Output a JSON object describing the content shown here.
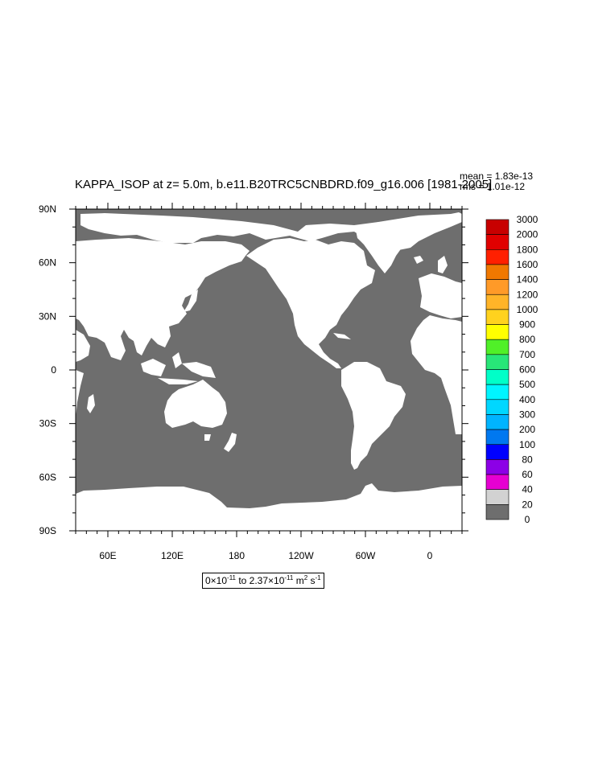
{
  "title": "KAPPA_ISOP at z=   5.0m, b.e11.B20TRC5CNBDRD.f09_g16.006 [1981-2005]",
  "stats": {
    "mean": "mean = 1.83e-13",
    "rms": "rms = 1.01e-12"
  },
  "units": {
    "prefix": "0×10",
    "exp1": "-11",
    "mid": " to 2.37×10",
    "exp2": "-11",
    "unit": " m",
    "exp3": "2",
    "unit2": " s",
    "exp4": "-1"
  },
  "lat_labels": [
    "90N",
    "60N",
    "30N",
    "0",
    "30S",
    "60S",
    "90S"
  ],
  "lon_labels": [
    "60E",
    "120E",
    "180",
    "120W",
    "60W",
    "0"
  ],
  "colorbar": {
    "labels": [
      "3000",
      "2000",
      "1800",
      "1600",
      "1400",
      "1200",
      "1000",
      "900",
      "800",
      "700",
      "600",
      "500",
      "400",
      "300",
      "200",
      "100",
      "80",
      "60",
      "40",
      "20",
      "0"
    ],
    "colors": [
      "#c80000",
      "#e00000",
      "#ff2000",
      "#f07800",
      "#ff9a28",
      "#ffb428",
      "#ffd21e",
      "#ffff00",
      "#50f028",
      "#28e678",
      "#00ffc8",
      "#00f5ff",
      "#00d7ff",
      "#00b4ff",
      "#0078f0",
      "#0000ff",
      "#8c00e6",
      "#e600d2",
      "#d2d2d2",
      "#6e6e6e"
    ]
  },
  "map_colors": {
    "ocean": "#6e6e6e",
    "land": "#ffffff"
  }
}
